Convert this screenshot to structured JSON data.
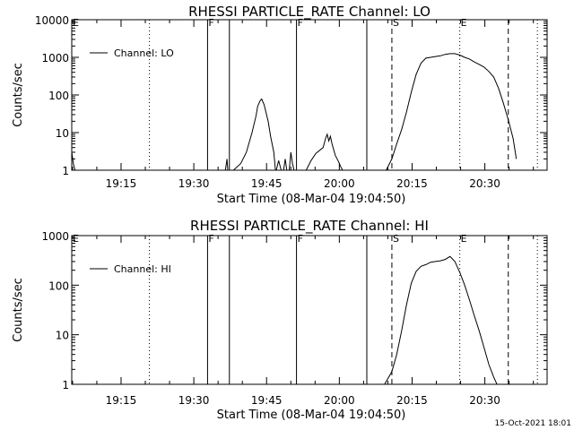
{
  "footer": {
    "timestamp": "15-Oct-2021 18:01"
  },
  "chart_data": [
    {
      "type": "line",
      "title": "RHESSI PARTICLE_RATE Channel: LO",
      "xlabel": "Start Time (08-Mar-04 19:04:50)",
      "ylabel": "Counts/sec",
      "yscale": "log",
      "ylim": [
        1,
        10000
      ],
      "xlim": [
        "19:04:50",
        "20:42:50"
      ],
      "xticks": [
        "19:15",
        "19:30",
        "19:45",
        "20:00",
        "20:15",
        "20:30"
      ],
      "yticks": [
        "1",
        "10",
        "100",
        "1000",
        "10000"
      ],
      "legend": {
        "label": "Channel: LO",
        "position": "top-left"
      },
      "markers": [
        {
          "label": "E",
          "time": "19:04:50",
          "style": "none"
        },
        {
          "label": "",
          "time": "19:20:50",
          "style": "dotted"
        },
        {
          "label": "F",
          "time": "19:32:50",
          "style": "solid"
        },
        {
          "label": "",
          "time": "19:37:20",
          "style": "solid"
        },
        {
          "label": "F",
          "time": "19:51:10",
          "style": "solid"
        },
        {
          "label": "",
          "time": "20:05:40",
          "style": "solid"
        },
        {
          "label": "S",
          "time": "20:10:50",
          "style": "dashed"
        },
        {
          "label": "E",
          "time": "20:24:50",
          "style": "dotted"
        },
        {
          "label": "",
          "time": "20:34:50",
          "style": "dashed"
        },
        {
          "label": "",
          "time": "20:40:50",
          "style": "dotted"
        }
      ],
      "segments": [
        {
          "t": [
            "19:04:50",
            "19:05:10",
            "19:05:30"
          ],
          "y": [
            3,
            1.5,
            1
          ]
        },
        {
          "t": [
            "19:36:30",
            "19:36:50",
            "19:37:00"
          ],
          "y": [
            1,
            2,
            1
          ]
        },
        {
          "t": [
            "19:38:10",
            "19:39:40",
            "19:40:50",
            "19:42:00",
            "19:42:50",
            "19:43:10",
            "19:43:40",
            "19:44:00",
            "19:44:30",
            "19:45:20",
            "19:45:50",
            "19:46:30",
            "19:46:50"
          ],
          "y": [
            1,
            1.5,
            3,
            10,
            28,
            50,
            70,
            78,
            55,
            20,
            8,
            3,
            1
          ]
        },
        {
          "t": [
            "19:47:00",
            "19:47:30",
            "19:48:00"
          ],
          "y": [
            1,
            1.8,
            1
          ]
        },
        {
          "t": [
            "19:48:30",
            "19:48:50",
            "19:49:10"
          ],
          "y": [
            1,
            2,
            1
          ]
        },
        {
          "t": [
            "19:49:40",
            "19:50:00",
            "19:50:20",
            "19:50:40"
          ],
          "y": [
            1,
            3,
            1.5,
            1
          ]
        },
        {
          "t": [
            "19:53:10",
            "19:54:10",
            "19:55:10",
            "19:56:40",
            "19:57:10",
            "19:57:30",
            "19:57:50",
            "19:58:10",
            "19:58:30",
            "19:59:10",
            "19:59:50",
            "20:00:20",
            "20:00:40"
          ],
          "y": [
            1,
            1.8,
            2.8,
            4,
            7,
            9,
            6,
            8,
            5,
            2.5,
            1.7,
            1.2,
            1
          ]
        },
        {
          "t": [
            "20:09:40",
            "20:10:50",
            "20:11:50",
            "20:12:50",
            "20:13:50",
            "20:14:50",
            "20:15:50",
            "20:16:50",
            "20:17:50",
            "20:18:50",
            "20:19:50",
            "20:20:50",
            "20:21:50",
            "20:22:50",
            "20:23:50",
            "20:24:50",
            "20:25:50",
            "20:26:50",
            "20:27:50",
            "20:28:50",
            "20:29:50",
            "20:30:50",
            "20:31:50",
            "20:32:50",
            "20:33:50",
            "20:34:50",
            "20:35:50",
            "20:36:30"
          ],
          "y": [
            1,
            2,
            5,
            12,
            35,
            120,
            350,
            700,
            950,
            1000,
            1050,
            1100,
            1200,
            1250,
            1250,
            1150,
            1000,
            900,
            750,
            650,
            550,
            420,
            300,
            150,
            60,
            22,
            7,
            2
          ]
        }
      ]
    },
    {
      "type": "line",
      "title": "RHESSI PARTICLE_RATE Channel: HI",
      "xlabel": "Start Time (08-Mar-04 19:04:50)",
      "ylabel": "Counts/sec",
      "yscale": "log",
      "ylim": [
        1,
        1000
      ],
      "xlim": [
        "19:04:50",
        "20:42:50"
      ],
      "xticks": [
        "19:15",
        "19:30",
        "19:45",
        "20:00",
        "20:15",
        "20:30"
      ],
      "yticks": [
        "1",
        "10",
        "100",
        "1000"
      ],
      "legend": {
        "label": "Channel: HI",
        "position": "top-left"
      },
      "markers": [
        {
          "label": "E",
          "time": "19:04:50",
          "style": "none"
        },
        {
          "label": "",
          "time": "19:20:50",
          "style": "dotted"
        },
        {
          "label": "F",
          "time": "19:32:50",
          "style": "solid"
        },
        {
          "label": "",
          "time": "19:37:20",
          "style": "solid"
        },
        {
          "label": "F",
          "time": "19:51:10",
          "style": "solid"
        },
        {
          "label": "",
          "time": "20:05:40",
          "style": "solid"
        },
        {
          "label": "S",
          "time": "20:10:50",
          "style": "dashed"
        },
        {
          "label": "E",
          "time": "20:24:50",
          "style": "dotted"
        },
        {
          "label": "",
          "time": "20:34:50",
          "style": "dashed"
        },
        {
          "label": "",
          "time": "20:40:50",
          "style": "dotted"
        }
      ],
      "segments": [
        {
          "t": [
            "20:09:20",
            "20:10:50",
            "20:11:50",
            "20:12:50",
            "20:13:50",
            "20:14:50",
            "20:15:50",
            "20:16:50",
            "20:17:50",
            "20:18:50",
            "20:19:50",
            "20:20:50",
            "20:21:50",
            "20:22:50",
            "20:23:50",
            "20:24:50",
            "20:25:50",
            "20:26:50",
            "20:27:50",
            "20:28:50",
            "20:29:50",
            "20:30:50",
            "20:31:50",
            "20:32:30"
          ],
          "y": [
            1,
            1.8,
            4,
            12,
            40,
            110,
            190,
            240,
            260,
            290,
            300,
            310,
            330,
            380,
            300,
            180,
            100,
            50,
            24,
            12,
            5.5,
            2.5,
            1.4,
            1
          ]
        }
      ]
    }
  ]
}
